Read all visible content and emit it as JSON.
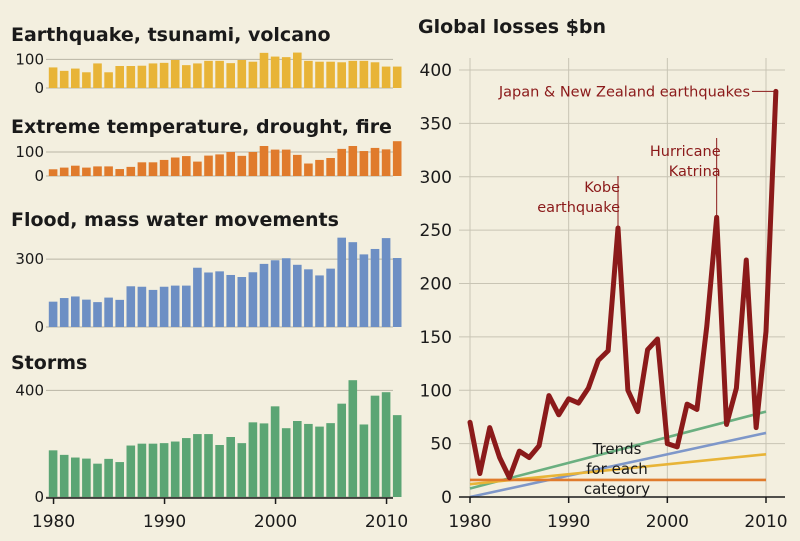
{
  "chart_data": [
    {
      "type": "bar",
      "title": "Earthquake, tsunami, volcano",
      "x": [
        1980,
        1981,
        1982,
        1983,
        1984,
        1985,
        1986,
        1987,
        1988,
        1989,
        1990,
        1991,
        1992,
        1993,
        1994,
        1995,
        1996,
        1997,
        1998,
        1999,
        2000,
        2001,
        2002,
        2003,
        2004,
        2005,
        2006,
        2007,
        2008,
        2009,
        2010,
        2011
      ],
      "values": [
        72,
        60,
        68,
        55,
        86,
        55,
        77,
        77,
        78,
        86,
        88,
        98,
        80,
        86,
        95,
        95,
        87,
        98,
        92,
        123,
        110,
        108,
        124,
        95,
        92,
        92,
        90,
        95,
        95,
        90,
        75,
        75
      ],
      "yticks": [
        0,
        100
      ],
      "ylim": [
        0,
        140
      ],
      "color": "#e8b437"
    },
    {
      "type": "bar",
      "title": "Extreme temperature, drought, fire",
      "x": [
        1980,
        1981,
        1982,
        1983,
        1984,
        1985,
        1986,
        1987,
        1988,
        1989,
        1990,
        1991,
        1992,
        1993,
        1994,
        1995,
        1996,
        1997,
        1998,
        1999,
        2000,
        2001,
        2002,
        2003,
        2004,
        2005,
        2006,
        2007,
        2008,
        2009,
        2010,
        2011
      ],
      "values": [
        28,
        35,
        43,
        35,
        40,
        40,
        29,
        38,
        57,
        57,
        67,
        77,
        83,
        60,
        85,
        90,
        100,
        84,
        100,
        125,
        110,
        110,
        88,
        52,
        67,
        75,
        113,
        125,
        104,
        117,
        111,
        145
      ],
      "yticks": [
        0,
        100
      ],
      "ylim": [
        0,
        150
      ],
      "color": "#e07b2c"
    },
    {
      "type": "bar",
      "title": "Flood, mass water movements",
      "x": [
        1980,
        1981,
        1982,
        1983,
        1984,
        1985,
        1986,
        1987,
        1988,
        1989,
        1990,
        1991,
        1992,
        1993,
        1994,
        1995,
        1996,
        1997,
        1998,
        1999,
        2000,
        2001,
        2002,
        2003,
        2004,
        2005,
        2006,
        2007,
        2008,
        2009,
        2010,
        2011
      ],
      "values": [
        112,
        128,
        135,
        121,
        110,
        130,
        120,
        180,
        178,
        164,
        178,
        183,
        183,
        262,
        241,
        246,
        230,
        221,
        242,
        279,
        295,
        304,
        275,
        255,
        228,
        258,
        395,
        375,
        321,
        345,
        393,
        305
      ],
      "yticks": [
        0,
        300
      ],
      "ylim": [
        0,
        420
      ],
      "color": "#6d8fc4"
    },
    {
      "type": "bar",
      "title": "Storms",
      "x": [
        1980,
        1981,
        1982,
        1983,
        1984,
        1985,
        1986,
        1987,
        1988,
        1989,
        1990,
        1991,
        1992,
        1993,
        1994,
        1995,
        1996,
        1997,
        1998,
        1999,
        2000,
        2001,
        2002,
        2003,
        2004,
        2005,
        2006,
        2007,
        2008,
        2009,
        2010,
        2011
      ],
      "values": [
        175,
        158,
        148,
        144,
        125,
        143,
        131,
        193,
        200,
        200,
        202,
        208,
        221,
        236,
        236,
        195,
        225,
        202,
        280,
        276,
        340,
        258,
        285,
        274,
        264,
        277,
        350,
        438,
        272,
        380,
        393,
        307
      ],
      "yticks": [
        0,
        400
      ],
      "ylim": [
        0,
        450
      ],
      "color": "#5ba574"
    },
    {
      "type": "line",
      "title": "Global losses $bn",
      "x": [
        1980,
        1981,
        1982,
        1983,
        1984,
        1985,
        1986,
        1987,
        1988,
        1989,
        1990,
        1991,
        1992,
        1993,
        1994,
        1995,
        1996,
        1997,
        1998,
        1999,
        2000,
        2001,
        2002,
        2003,
        2004,
        2005,
        2006,
        2007,
        2008,
        2009,
        2010,
        2011
      ],
      "series": [
        {
          "values": [
            70,
            22,
            65,
            37,
            18,
            43,
            37,
            48,
            95,
            77,
            92,
            88,
            102,
            128,
            137,
            252,
            100,
            80,
            138,
            148,
            50,
            47,
            87,
            82,
            160,
            262,
            68,
            102,
            222,
            65,
            155,
            380
          ]
        }
      ],
      "trends": [
        {
          "color": "#7e97c9",
          "from": [
            1980,
            0
          ],
          "to": [
            2010,
            60
          ]
        },
        {
          "color": "#6aaf80",
          "from": [
            1980,
            8
          ],
          "to": [
            2010,
            80
          ]
        },
        {
          "color": "#e8b437",
          "from": [
            1980,
            12
          ],
          "to": [
            2010,
            40
          ]
        },
        {
          "color": "#e07b2c",
          "from": [
            1980,
            16
          ],
          "to": [
            2010,
            16
          ]
        }
      ],
      "yticks": [
        0,
        50,
        100,
        150,
        200,
        250,
        300,
        350,
        400
      ],
      "ylim": [
        0,
        415
      ],
      "color": "#8b1a1a",
      "annotations": [
        {
          "lines": [
            "Kobe",
            "earthquake"
          ],
          "x": 1995,
          "y": 252
        },
        {
          "lines": [
            "Hurricane",
            "Katrina"
          ],
          "x": 2005,
          "y": 262
        },
        {
          "lines": [
            "Japan & New Zealand earthquakes"
          ],
          "x": 2011,
          "y": 380
        }
      ],
      "trend_label": [
        "Trends",
        "for each",
        "category"
      ]
    }
  ],
  "xticks": [
    1980,
    1990,
    2000,
    2010
  ]
}
